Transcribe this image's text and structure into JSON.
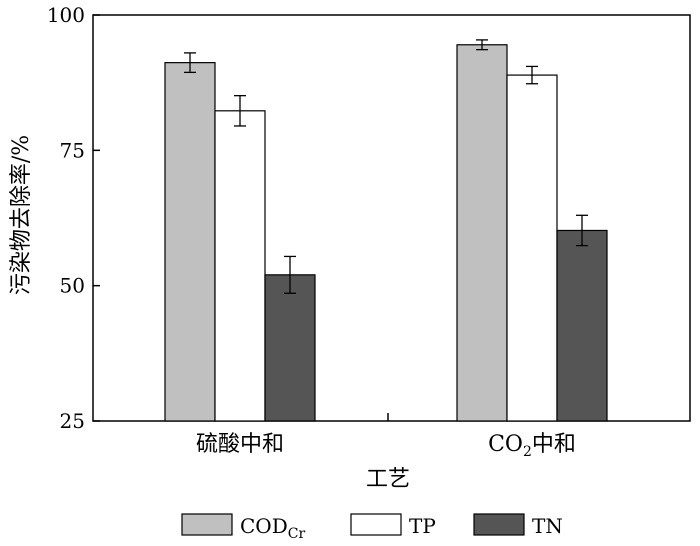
{
  "chart_data": {
    "type": "bar",
    "categories": [
      "硫酸中和",
      "CO₂中和"
    ],
    "category_parts": [
      {
        "main": "硫酸中和"
      },
      {
        "main": "CO",
        "sub": "2",
        "tail": "中和"
      }
    ],
    "xlabel": "工艺",
    "ylabel": "污染物去除率/%",
    "ylim": [
      25,
      100
    ],
    "yticks": [
      25,
      50,
      75,
      100
    ],
    "grid": false,
    "legend_position": "bottom",
    "series": [
      {
        "name": "CODCr",
        "name_main": "COD",
        "name_sub": "Cr",
        "color": "#c0c0c0",
        "values": [
          91.2,
          94.5
        ],
        "errors": [
          1.8,
          0.9
        ]
      },
      {
        "name": "TP",
        "color": "#ffffff",
        "values": [
          82.3,
          88.9
        ],
        "errors": [
          2.8,
          1.6
        ]
      },
      {
        "name": "TN",
        "color": "#555555",
        "values": [
          52.0,
          60.2
        ],
        "errors": [
          3.4,
          2.8
        ]
      }
    ]
  }
}
